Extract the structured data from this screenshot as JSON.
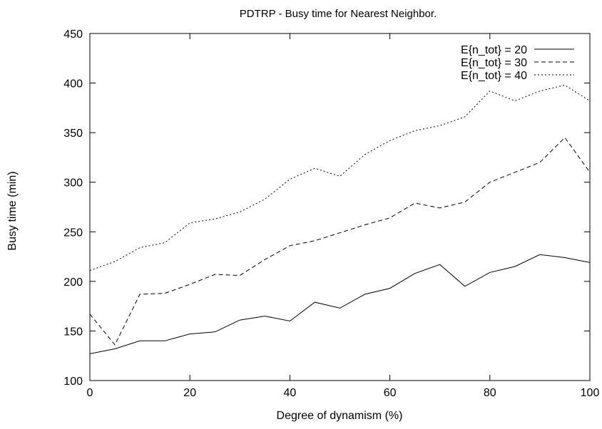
{
  "chart_data": {
    "type": "line",
    "title": "PDTRP - Busy time for Nearest Neighbor.",
    "xlabel": "Degree of dynamism (%)",
    "ylabel": "Busy time (min)",
    "xlim": [
      0,
      100
    ],
    "ylim": [
      100,
      450
    ],
    "xticks": [
      0,
      20,
      40,
      60,
      80,
      100
    ],
    "yticks": [
      100,
      150,
      200,
      250,
      300,
      350,
      400,
      450
    ],
    "grid": false,
    "legend_position": "top-right",
    "x": [
      0,
      5,
      10,
      15,
      20,
      25,
      30,
      35,
      40,
      45,
      50,
      55,
      60,
      65,
      70,
      75,
      80,
      85,
      90,
      95,
      100
    ],
    "series": [
      {
        "name": "E{n_tot} = 20",
        "dash": "solid",
        "values": [
          127,
          132,
          140,
          140,
          147,
          149,
          161,
          165,
          160,
          179,
          173,
          187,
          193,
          208,
          217,
          195,
          209,
          215,
          227,
          224,
          219
        ]
      },
      {
        "name": "E{n_tot} = 30",
        "dash": "dashed",
        "values": [
          167,
          136,
          187,
          188,
          197,
          207,
          206,
          222,
          236,
          241,
          249,
          257,
          264,
          279,
          274,
          280,
          300,
          310,
          320,
          345,
          310
        ]
      },
      {
        "name": "E{n_tot} = 40",
        "dash": "dotted",
        "values": [
          211,
          220,
          234,
          239,
          259,
          263,
          270,
          283,
          303,
          314,
          306,
          328,
          342,
          352,
          357,
          366,
          392,
          382,
          392,
          398,
          382
        ]
      }
    ],
    "line_color": "#000000"
  }
}
